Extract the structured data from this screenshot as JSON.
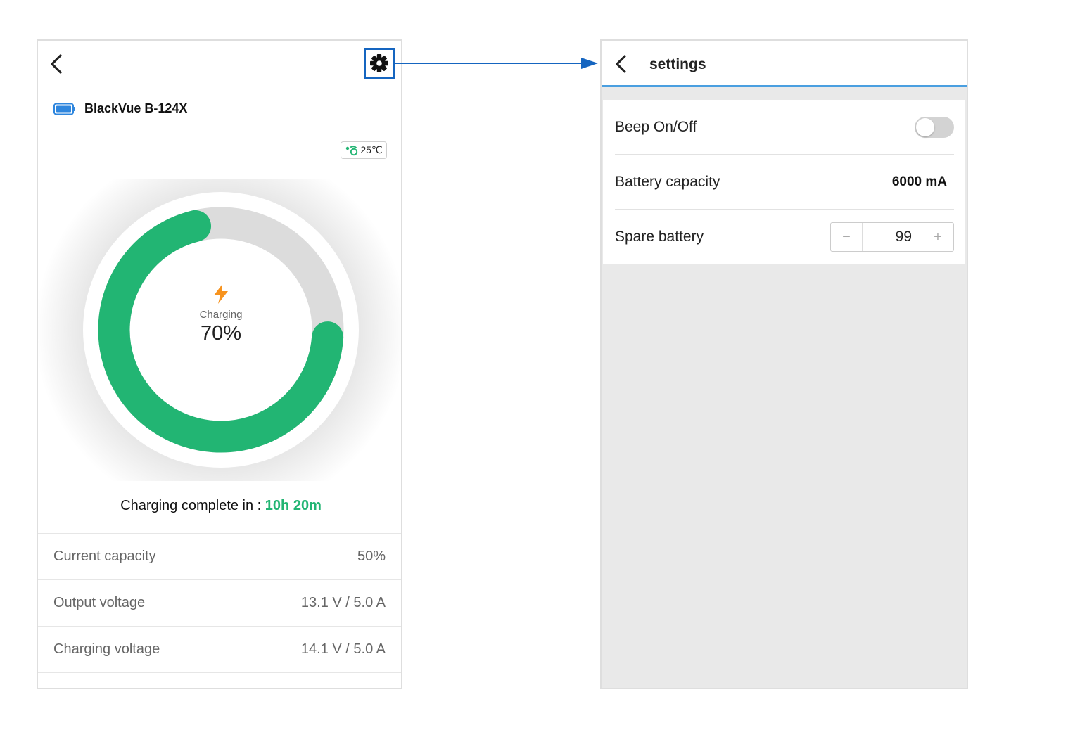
{
  "left_screen": {
    "device_name": "BlackVue B-124X",
    "temperature": "25℃",
    "charging_label": "Charging",
    "charge_percent_text": "70%",
    "charge_fraction": 0.7,
    "complete_label": "Charging complete in : ",
    "complete_time": "10h 20m",
    "info_rows": [
      {
        "label": "Current capacity",
        "value": "50%"
      },
      {
        "label": "Output voltage",
        "value": "13.1 V / 5.0 A"
      },
      {
        "label": "Charging voltage",
        "value": "14.1 V / 5.0 A"
      }
    ],
    "icons": {
      "back": "back-icon",
      "settings": "gear-icon",
      "battery": "battery-icon",
      "temperature": "thermometer-leaf-icon",
      "bolt": "lightning-bolt-icon"
    }
  },
  "right_screen": {
    "title": "settings",
    "rows": [
      {
        "label": "Beep On/Off",
        "toggle_on": false
      },
      {
        "label": "Battery capacity",
        "value": "6000 mA"
      },
      {
        "label": "Spare battery",
        "stepper_minus": "−",
        "stepper_value": "99",
        "stepper_plus": "+"
      }
    ]
  },
  "colors": {
    "accent_green": "#22b573",
    "highlight_blue": "#1565c0",
    "header_underline": "#4a9fe0",
    "bolt_orange": "#f7931e"
  }
}
